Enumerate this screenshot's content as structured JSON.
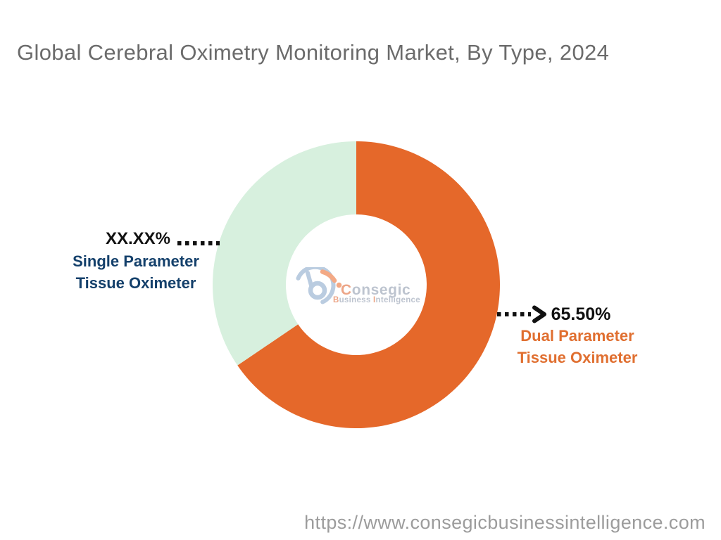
{
  "title": "Global Cerebral Oximetry Monitoring Market, By Type, 2024",
  "chart_data": {
    "type": "pie",
    "subtype": "donut",
    "title": "Global Cerebral Oximetry Monitoring Market, By Type, 2024",
    "start_angle": "12-oclock",
    "direction": "clockwise",
    "inner_radius_ratio": 0.49,
    "segments": [
      {
        "id": "dual-parameter-tissue-oximeter",
        "label": "Dual Parameter Tissue Oximeter",
        "value": 65.5,
        "display_value": "65.50%",
        "color": "#e5682a",
        "label_color": "#e06f30"
      },
      {
        "id": "single-parameter-tissue-oximeter",
        "label": "Single Parameter Tissue Oximeter",
        "value": 34.5,
        "display_value": "XX.XX%",
        "color": "#d7f0de",
        "label_color": "#14406b"
      }
    ]
  },
  "callouts": {
    "left": {
      "percent": "XX.XX%",
      "line1": "Single Parameter",
      "line2": "Tissue Oximeter"
    },
    "right": {
      "percent": "65.50%",
      "line1": "Dual Parameter",
      "line2": "Tissue Oximeter"
    }
  },
  "watermark": {
    "name_first": "C",
    "name_rest": "onsegic",
    "tag": [
      "B",
      "usiness ",
      "I",
      "ntelligence"
    ]
  },
  "footer": {
    "url": "https://www.consegicbusinessintelligence.com"
  },
  "colors": {
    "dual_segment": "#e5682a",
    "single_segment": "#d7f0de",
    "navy_label": "#14406b",
    "orange_label": "#e06f30",
    "percent_text": "#111111",
    "title_text": "#6b6b6b",
    "url_text": "#9c9c9c",
    "leader_dots": "#111111"
  }
}
